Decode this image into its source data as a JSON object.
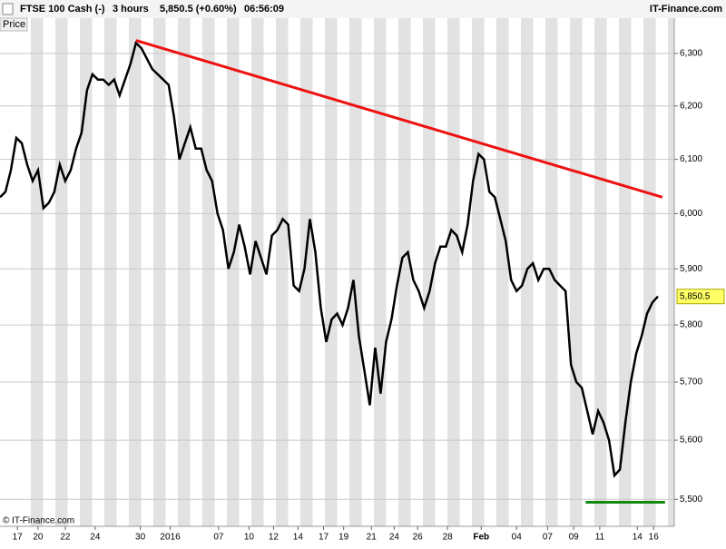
{
  "chart_data": {
    "type": "line",
    "header": [
      "FTSE 100 Cash (-)",
      "3 hours",
      "5,850.5 (+0.60%)",
      "06:56:09"
    ],
    "source": "IT-Finance.com",
    "panel_label": "Price",
    "copyright": "© IT-Finance.com",
    "yscale": "log",
    "ylim": [
      5455,
      6368
    ],
    "yticks": [
      {
        "value": 5500,
        "label": "5,500"
      },
      {
        "value": 5600,
        "label": "5,600"
      },
      {
        "value": 5700,
        "label": "5,700"
      },
      {
        "value": 5800,
        "label": "5,800"
      },
      {
        "value": 5900,
        "label": "5,900"
      },
      {
        "value": 6000,
        "label": "6,000"
      },
      {
        "value": 6100,
        "label": "6,100"
      },
      {
        "value": 6200,
        "label": "6,200"
      },
      {
        "value": 6300,
        "label": "6,300"
      }
    ],
    "xlim": [
      0,
      124
    ],
    "xticks": [
      {
        "value": 3.2,
        "label": "17"
      },
      {
        "value": 7,
        "label": "20"
      },
      {
        "value": 12,
        "label": "22"
      },
      {
        "value": 17.5,
        "label": "24"
      },
      {
        "value": 25.8,
        "label": "30"
      },
      {
        "value": 31.3,
        "label": "2016"
      },
      {
        "value": 40.2,
        "label": "07"
      },
      {
        "value": 45.8,
        "label": "10"
      },
      {
        "value": 50.3,
        "label": "12"
      },
      {
        "value": 54.8,
        "label": "14"
      },
      {
        "value": 59.5,
        "label": "17"
      },
      {
        "value": 63.2,
        "label": "19"
      },
      {
        "value": 68.3,
        "label": "21"
      },
      {
        "value": 72.5,
        "label": "24"
      },
      {
        "value": 76.8,
        "label": "26"
      },
      {
        "value": 82.3,
        "label": "28"
      },
      {
        "value": 88.5,
        "label": "Feb"
      },
      {
        "value": 95,
        "label": "04"
      },
      {
        "value": 100.7,
        "label": "07"
      },
      {
        "value": 105.5,
        "label": "09"
      },
      {
        "value": 110.3,
        "label": "11"
      },
      {
        "value": 117.2,
        "label": "14"
      },
      {
        "value": 120.2,
        "label": "16"
      }
    ],
    "grid": true,
    "x": [
      0,
      1,
      2,
      3,
      4,
      5,
      6,
      7,
      8,
      9,
      10,
      11,
      12,
      13,
      14,
      15,
      16,
      17,
      18,
      19,
      20,
      21,
      22,
      23,
      24,
      25,
      26,
      27,
      28,
      29,
      30,
      31,
      32,
      33,
      34,
      35,
      36,
      37,
      38,
      39,
      40,
      41,
      42,
      43,
      44,
      45,
      46,
      47,
      48,
      49,
      50,
      51,
      52,
      53,
      54,
      55,
      56,
      57,
      58,
      59,
      60,
      61,
      62,
      63,
      64,
      65,
      66,
      67,
      68,
      69,
      70,
      71,
      72,
      73,
      74,
      75,
      76,
      77,
      78,
      79,
      80,
      81,
      82,
      83,
      84,
      85,
      86,
      87,
      88,
      89,
      90,
      91,
      92,
      93,
      94,
      95,
      96,
      97,
      98,
      99,
      100,
      101,
      102,
      103,
      104,
      105,
      106,
      107,
      108,
      109,
      110,
      111,
      112,
      113,
      114,
      115,
      116,
      117,
      118,
      119,
      120,
      121
    ],
    "series": [
      {
        "color": "#000000",
        "values": [
          6030,
          6040,
          6080,
          6140,
          6130,
          6090,
          6060,
          6080,
          6010,
          6020,
          6040,
          6090,
          6060,
          6080,
          6120,
          6150,
          6230,
          6260,
          6250,
          6250,
          6240,
          6250,
          6220,
          6250,
          6280,
          6320,
          6310,
          6290,
          6270,
          6260,
          6250,
          6240,
          6180,
          6100,
          6130,
          6160,
          6120,
          6120,
          6080,
          6060,
          6000,
          5970,
          5900,
          5930,
          5980,
          5940,
          5890,
          5950,
          5920,
          5890,
          5960,
          5970,
          5990,
          5980,
          5870,
          5860,
          5900,
          5990,
          5930,
          5830,
          5770,
          5810,
          5820,
          5800,
          5830,
          5880,
          5780,
          5720,
          5660,
          5760,
          5680,
          5770,
          5810,
          5870,
          5920,
          5930,
          5880,
          5860,
          5830,
          5860,
          5910,
          5940,
          5940,
          5970,
          5960,
          5930,
          5980,
          6060,
          6110,
          6100,
          6040,
          6030,
          5990,
          5950,
          5880,
          5860,
          5870,
          5900,
          5910,
          5880,
          5900,
          5900,
          5880,
          5870,
          5860,
          5730,
          5700,
          5690,
          5650,
          5610,
          5650,
          5630,
          5600,
          5540,
          5550,
          5630,
          5700,
          5750,
          5780,
          5820,
          5840,
          5850.5
        ]
      }
    ],
    "last_value_label": "5,850.5",
    "last_label_color": "#ffff66",
    "trend_lines": [
      {
        "color": "#ee1111",
        "x": [
          25,
          121.8
        ],
        "values": [
          6325,
          6030
        ]
      },
      {
        "color": "#118811",
        "x": [
          107.7,
          122.3
        ],
        "values": [
          5495,
          5495
        ]
      }
    ]
  }
}
